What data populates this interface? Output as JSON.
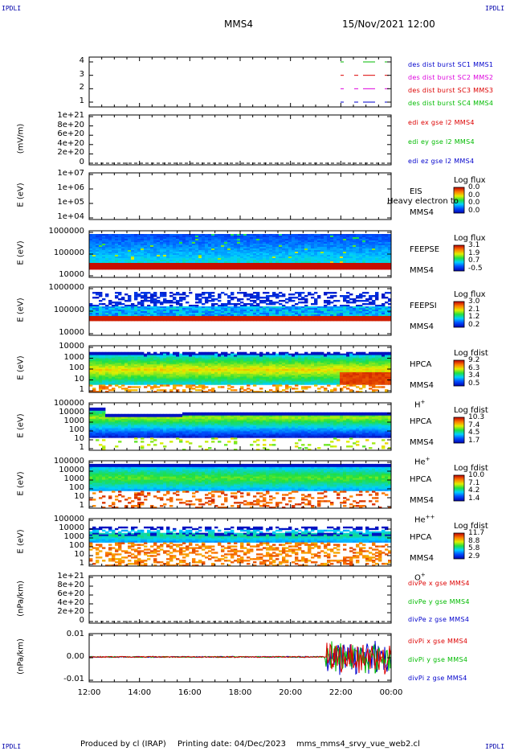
{
  "corners": {
    "tl": "IPDLI",
    "tr": "IPDLI",
    "bl": "IPDLI",
    "br": "IPDLI"
  },
  "header": {
    "spacecraft": "MMS4",
    "datetime": "15/Nov/2021 12:00"
  },
  "footer": {
    "produced": "Produced by cl (IRAP)",
    "printing": "Printing date: 04/Dec/2023",
    "file": "mms_mms4_srvy_vue_web2.cl"
  },
  "colors": {
    "red": "#dd0000",
    "green": "#00bb00",
    "blue": "#0000cc",
    "magenta": "#dd00dd"
  },
  "chart_data": [
    {
      "type": "line",
      "panel": "burst",
      "yticks": [
        "4",
        "3",
        "2",
        "1"
      ],
      "ylim": [
        0.5,
        4.5
      ],
      "series": [
        {
          "name": "des dist burst SC1 MMS1",
          "color": "#0000cc"
        },
        {
          "name": "des dist burst SC2 MMS2",
          "color": "#dd00dd"
        },
        {
          "name": "des dist burst SC3 MMS3",
          "color": "#dd0000"
        },
        {
          "name": "des dist burst SC4 MMS4",
          "color": "#00bb00"
        }
      ]
    },
    {
      "type": "line",
      "panel": "edi",
      "ylabel": "(mV/m)",
      "yticks": [
        "1e+21",
        "8e+20",
        "6e+20",
        "4e+20",
        "2e+20",
        "0"
      ],
      "series": [
        {
          "name": "edi ex gse l2 MMS4",
          "color": "#dd0000"
        },
        {
          "name": "edi ey gse l2 MMS4",
          "color": "#00bb00"
        },
        {
          "name": "edi ez gse l2 MMS4",
          "color": "#0000cc"
        }
      ]
    },
    {
      "type": "heatmap",
      "panel": "eis",
      "ylabel": "E (eV)",
      "yticks": [
        "1e+07",
        "1e+06",
        "1e+05",
        "1e+04"
      ],
      "instrument": "EIS",
      "sc": "MMS4",
      "overlay": "Heavy electron to",
      "cb_title": "Log flux",
      "cb_values": [
        "0.0",
        "0.0",
        "0.0",
        "0.0"
      ]
    },
    {
      "type": "heatmap",
      "panel": "feepse",
      "ylabel": "E (eV)",
      "yticks": [
        "1000000",
        "100000",
        "10000"
      ],
      "instrument": "FEEPSE",
      "sc": "MMS4",
      "cb_title": "Log flux",
      "cb_values": [
        "3.1",
        "1.9",
        "0.7",
        "-0.5"
      ]
    },
    {
      "type": "heatmap",
      "panel": "feepsi",
      "ylabel": "E (eV)",
      "yticks": [
        "1000000",
        "100000",
        "10000"
      ],
      "instrument": "FEEPSI",
      "sc": "MMS4",
      "cb_title": "Log flux",
      "cb_values": [
        "3.0",
        "2.1",
        "1.2",
        "0.2"
      ]
    },
    {
      "type": "heatmap",
      "panel": "hpca_h",
      "ylabel": "E (eV)",
      "yticks": [
        "10000",
        "1000",
        "100",
        "10",
        "1"
      ],
      "instrument": "HPCA",
      "sc": "MMS4",
      "species": "H",
      "charge": "+",
      "cb_title": "Log fdist",
      "cb_values": [
        "9.2",
        "6.3",
        "3.4",
        "0.5"
      ]
    },
    {
      "type": "heatmap",
      "panel": "hpca_he",
      "ylabel": "E (eV)",
      "yticks": [
        "100000",
        "10000",
        "1000",
        "100",
        "10",
        "1"
      ],
      "instrument": "HPCA",
      "sc": "MMS4",
      "species": "He",
      "charge": "+",
      "cb_title": "Log fdist",
      "cb_values": [
        "10.3",
        "7.4",
        "4.5",
        "1.7"
      ]
    },
    {
      "type": "heatmap",
      "panel": "hpca_hepp",
      "ylabel": "E (eV)",
      "yticks": [
        "100000",
        "10000",
        "1000",
        "100",
        "10",
        "1"
      ],
      "instrument": "HPCA",
      "sc": "MMS4",
      "species": "He",
      "charge": "++",
      "cb_title": "Log fdist",
      "cb_values": [
        "10.0",
        "7.1",
        "4.2",
        "1.4"
      ]
    },
    {
      "type": "heatmap",
      "panel": "hpca_o",
      "ylabel": "E (eV)",
      "yticks": [
        "100000",
        "10000",
        "1000",
        "100",
        "10",
        "1"
      ],
      "instrument": "HPCA",
      "sc": "MMS4",
      "species": "O",
      "charge": "+",
      "cb_title": "Log fdist",
      "cb_values": [
        "11.7",
        "8.8",
        "5.8",
        "2.9"
      ]
    },
    {
      "type": "line",
      "panel": "divpe",
      "ylabel": "(nPa/km)",
      "yticks": [
        "1e+21",
        "8e+20",
        "6e+20",
        "4e+20",
        "2e+20",
        "0"
      ],
      "series": [
        {
          "name": "divPe x gse MMS4",
          "color": "#dd0000"
        },
        {
          "name": "divPe y gse MMS4",
          "color": "#00bb00"
        },
        {
          "name": "divPe z gse MMS4",
          "color": "#0000cc"
        }
      ]
    },
    {
      "type": "line",
      "panel": "divpi",
      "ylabel": "(nPa/km)",
      "yticks": [
        "0.01",
        "0.00",
        "-0.01"
      ],
      "ylim": [
        -0.015,
        0.015
      ],
      "series": [
        {
          "name": "divPi x gse MMS4",
          "color": "#dd0000"
        },
        {
          "name": "divPi y gse MMS4",
          "color": "#00bb00"
        },
        {
          "name": "divPi z gse MMS4",
          "color": "#0000cc"
        }
      ]
    }
  ],
  "xaxis": {
    "ticks": [
      "12:00",
      "14:00",
      "16:00",
      "18:00",
      "20:00",
      "22:00",
      "00:00"
    ]
  }
}
